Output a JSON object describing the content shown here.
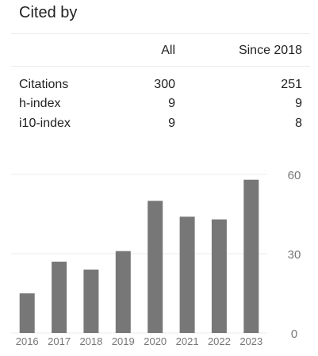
{
  "header": {
    "title": "Cited by"
  },
  "table": {
    "columns": [
      "All",
      "Since 2018"
    ],
    "rows": [
      {
        "label": "Citations",
        "all": "300",
        "since": "251"
      },
      {
        "label": "h-index",
        "all": "9",
        "since": "9"
      },
      {
        "label": "i10-index",
        "all": "9",
        "since": "8"
      }
    ]
  },
  "chart_data": {
    "type": "bar",
    "categories": [
      "2016",
      "2017",
      "2018",
      "2019",
      "2020",
      "2021",
      "2022",
      "2023"
    ],
    "values": [
      15,
      27,
      24,
      31,
      50,
      44,
      43,
      58
    ],
    "ylim": [
      0,
      60
    ],
    "yticks": [
      "0",
      "30",
      "60"
    ],
    "grid": true,
    "bar_color": "#777777"
  }
}
